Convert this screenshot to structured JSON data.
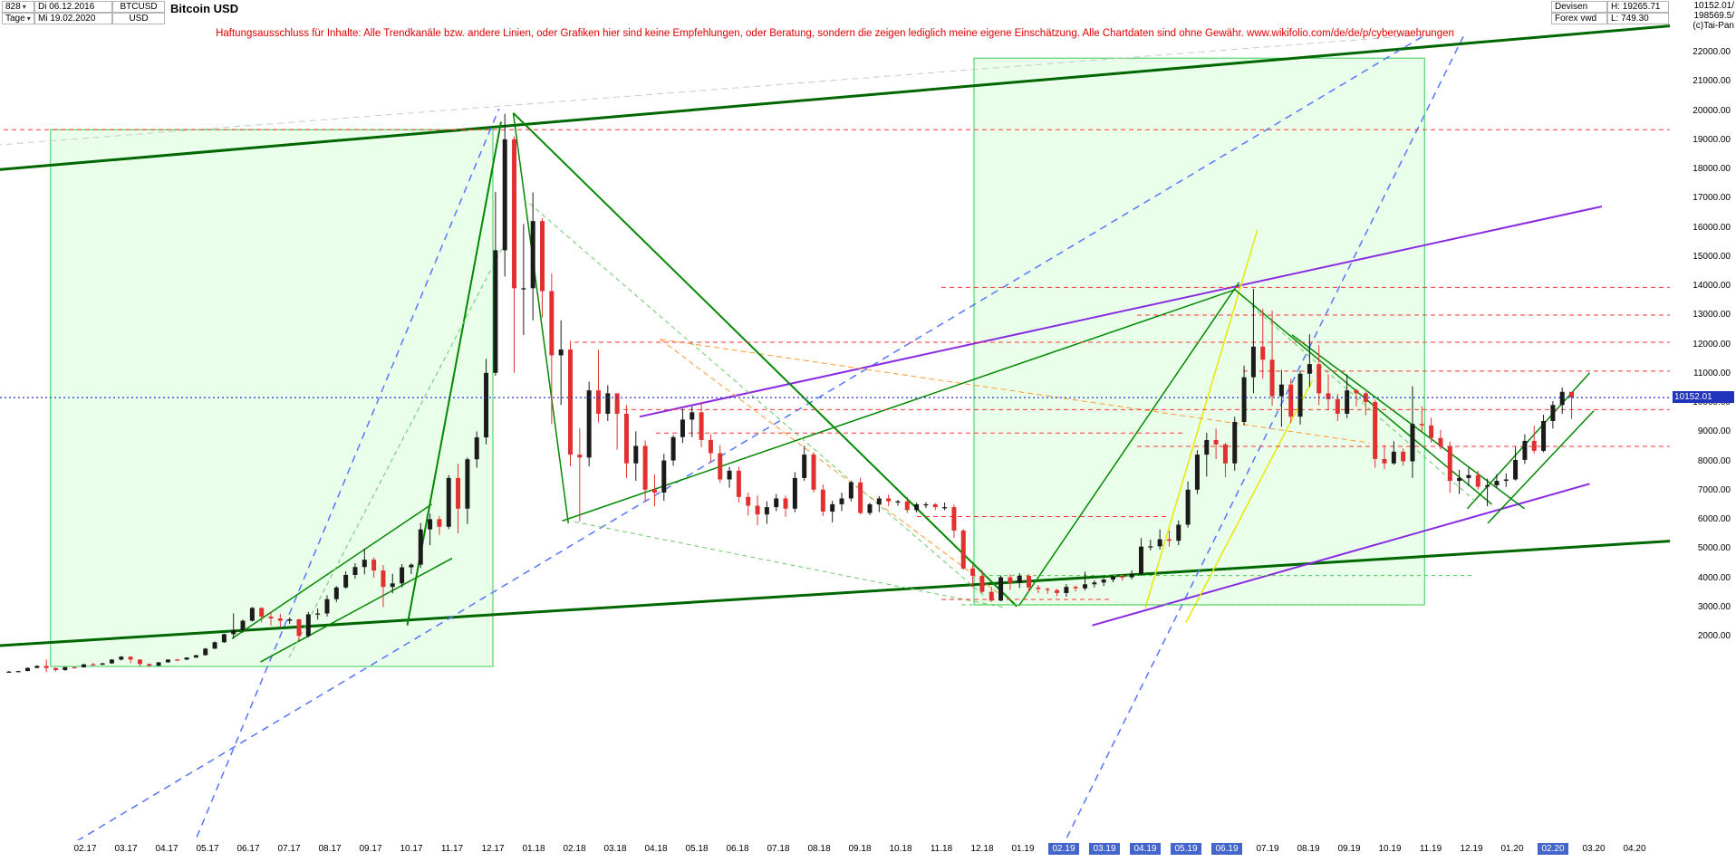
{
  "app": {
    "bars_count": "828",
    "period": "Tage",
    "start_date": "Di 06.12.2016",
    "end_date": "Mi 19.02.2020",
    "symbol": "BTCUSD",
    "currency": "USD",
    "title": "Bitcoin USD",
    "market": "Devisen",
    "feed": "Forex vwd",
    "high": "H: 19265.71",
    "low": "L: 749.30",
    "quote1": "10152.01/",
    "quote2": "198569.5/",
    "copyright": "(c)Tai-Pan"
  },
  "disclaimer": "Haftungsausschluss für Inhalte: Alle Trendkanäle bzw. andere Linien, oder Grafiken hier sind keine Empfehlungen, oder Beratung, sondern die zeigen lediglich meine eigene Einschätzung. Alle Chartdaten sind ohne Gewähr.  www.wikifolio.com/de/de/p/cyberwaehrungen",
  "price_marker": {
    "label": "10152.01",
    "value": 10152.01,
    "bg": "#2233bb"
  },
  "chart_data": {
    "type": "candlestick",
    "title": "Bitcoin USD",
    "symbol": "BTCUSD",
    "period": "Tage",
    "range_start": "06.12.2016",
    "range_end": "19.02.2020",
    "bars_on_screen": 828,
    "period_high": 19265.71,
    "period_low": 749.3,
    "last_price": 10152.01,
    "ylim": [
      2000,
      22000
    ],
    "y_step": 1000,
    "y_axis_labels": [
      "22000.00",
      "21000.00",
      "20000.00",
      "19000.00",
      "18000.00",
      "17000.00",
      "16000.00",
      "15000.00",
      "14000.00",
      "13000.00",
      "12000.00",
      "11000.00",
      "10000.00",
      "9000.00",
      "8000.00",
      "7000.00",
      "6000.00",
      "5000.00",
      "4000.00",
      "3000.00",
      "2000.00"
    ],
    "x_ticks": [
      {
        "t": "02.17",
        "m": 2,
        "hl": false
      },
      {
        "t": "03.17",
        "m": 3,
        "hl": false
      },
      {
        "t": "04.17",
        "m": 4,
        "hl": false
      },
      {
        "t": "05.17",
        "m": 5,
        "hl": false
      },
      {
        "t": "06.17",
        "m": 6,
        "hl": false
      },
      {
        "t": "07.17",
        "m": 7,
        "hl": false
      },
      {
        "t": "08.17",
        "m": 8,
        "hl": false
      },
      {
        "t": "09.17",
        "m": 9,
        "hl": false
      },
      {
        "t": "10.17",
        "m": 10,
        "hl": false
      },
      {
        "t": "11.17",
        "m": 11,
        "hl": false
      },
      {
        "t": "12.17",
        "m": 12,
        "hl": false
      },
      {
        "t": "01.18",
        "m": 13,
        "hl": false
      },
      {
        "t": "02.18",
        "m": 14,
        "hl": false
      },
      {
        "t": "03.18",
        "m": 15,
        "hl": false
      },
      {
        "t": "04.18",
        "m": 16,
        "hl": false
      },
      {
        "t": "05.18",
        "m": 17,
        "hl": false
      },
      {
        "t": "06.18",
        "m": 18,
        "hl": false
      },
      {
        "t": "07.18",
        "m": 19,
        "hl": false
      },
      {
        "t": "08.18",
        "m": 20,
        "hl": false
      },
      {
        "t": "09.18",
        "m": 21,
        "hl": false
      },
      {
        "t": "10.18",
        "m": 22,
        "hl": false
      },
      {
        "t": "11.18",
        "m": 23,
        "hl": false
      },
      {
        "t": "12.18",
        "m": 24,
        "hl": false
      },
      {
        "t": "01.19",
        "m": 25,
        "hl": false
      },
      {
        "t": "02.19",
        "m": 26,
        "hl": true
      },
      {
        "t": "03.19",
        "m": 27,
        "hl": true
      },
      {
        "t": "04.19",
        "m": 28,
        "hl": true
      },
      {
        "t": "05.19",
        "m": 29,
        "hl": true
      },
      {
        "t": "06.19",
        "m": 30,
        "hl": true
      },
      {
        "t": "07.19",
        "m": 31,
        "hl": false
      },
      {
        "t": "08.19",
        "m": 32,
        "hl": false
      },
      {
        "t": "09.19",
        "m": 33,
        "hl": false
      },
      {
        "t": "10.19",
        "m": 34,
        "hl": false
      },
      {
        "t": "11.19",
        "m": 35,
        "hl": false
      },
      {
        "t": "12.19",
        "m": 36,
        "hl": false
      },
      {
        "t": "01.20",
        "m": 37,
        "hl": false
      },
      {
        "t": "02.20",
        "m": 38,
        "hl": true
      },
      {
        "t": "03.20",
        "m": 39,
        "hl": false
      },
      {
        "t": "04.20",
        "m": 40,
        "hl": false
      }
    ],
    "sampling": "weekly OHLC approximation of the 828 daily bars shown",
    "first_open": 760,
    "m0": 0.13,
    "m_step": 0.2295,
    "up_color": "#1b1b1b",
    "down_color": "#e23030",
    "candles_hlc": [
      [
        790,
        740,
        768
      ],
      [
        795,
        760,
        788
      ],
      [
        910,
        780,
        895
      ],
      [
        985,
        880,
        963
      ],
      [
        1180,
        750,
        890
      ],
      [
        910,
        775,
        820
      ],
      [
        930,
        800,
        920
      ],
      [
        925,
        890,
        918
      ],
      [
        1030,
        900,
        1018
      ],
      [
        1070,
        980,
        1005
      ],
      [
        1070,
        990,
        1050
      ],
      [
        1200,
        1040,
        1180
      ],
      [
        1300,
        1150,
        1280
      ],
      [
        1290,
        1060,
        1180
      ],
      [
        1190,
        950,
        1030
      ],
      [
        1040,
        935,
        970
      ],
      [
        1100,
        960,
        1085
      ],
      [
        1190,
        1080,
        1180
      ],
      [
        1210,
        1150,
        1178
      ],
      [
        1260,
        1170,
        1250
      ],
      [
        1340,
        1240,
        1330
      ],
      [
        1580,
        1320,
        1555
      ],
      [
        1800,
        1540,
        1775
      ],
      [
        2070,
        1750,
        2050
      ],
      [
        2760,
        1900,
        2190
      ],
      [
        2550,
        2100,
        2510
      ],
      [
        2980,
        2480,
        2950
      ],
      [
        2970,
        2450,
        2650
      ],
      [
        2800,
        2350,
        2590
      ],
      [
        2750,
        2280,
        2510
      ],
      [
        2620,
        2400,
        2560
      ],
      [
        2580,
        1830,
        1990
      ],
      [
        2810,
        1940,
        2730
      ],
      [
        2930,
        2550,
        2760
      ],
      [
        3380,
        2650,
        3250
      ],
      [
        3700,
        3150,
        3650
      ],
      [
        4200,
        3600,
        4080
      ],
      [
        4480,
        3950,
        4350
      ],
      [
        4980,
        4100,
        4600
      ],
      [
        4680,
        3980,
        4230
      ],
      [
        4420,
        2980,
        3670
      ],
      [
        4120,
        3450,
        3790
      ],
      [
        4450,
        3660,
        4340
      ],
      [
        4480,
        4110,
        4430
      ],
      [
        5860,
        4320,
        5640
      ],
      [
        6180,
        5100,
        5990
      ],
      [
        6100,
        5450,
        5730
      ],
      [
        7500,
        5650,
        7400
      ],
      [
        7890,
        5500,
        6350
      ],
      [
        8100,
        5820,
        8040
      ],
      [
        8990,
        7750,
        8790
      ],
      [
        11480,
        8550,
        11000
      ],
      [
        17200,
        10900,
        15200
      ],
      [
        19870,
        14300,
        19000
      ],
      [
        19100,
        11000,
        13900
      ],
      [
        16100,
        12300,
        13900
      ],
      [
        17180,
        12800,
        16200
      ],
      [
        16300,
        12900,
        13800
      ],
      [
        14400,
        9250,
        11600
      ],
      [
        12800,
        9900,
        11800
      ],
      [
        12100,
        7800,
        8200
      ],
      [
        9100,
        5920,
        8100
      ],
      [
        10700,
        7800,
        10400
      ],
      [
        11790,
        9300,
        9600
      ],
      [
        10580,
        9350,
        10300
      ],
      [
        10290,
        8370,
        9600
      ],
      [
        9900,
        7390,
        7900
      ],
      [
        9000,
        7300,
        8500
      ],
      [
        8680,
        6600,
        7000
      ],
      [
        7530,
        6430,
        6900
      ],
      [
        8230,
        6620,
        8000
      ],
      [
        8870,
        7820,
        8800
      ],
      [
        9770,
        8600,
        9400
      ],
      [
        9850,
        8800,
        9650
      ],
      [
        9990,
        8450,
        8700
      ],
      [
        8900,
        7930,
        8250
      ],
      [
        8520,
        7240,
        7350
      ],
      [
        7780,
        7070,
        7650
      ],
      [
        7790,
        6560,
        6750
      ],
      [
        6900,
        6120,
        6450
      ],
      [
        6800,
        5780,
        6150
      ],
      [
        6600,
        5830,
        6400
      ],
      [
        6850,
        6260,
        6700
      ],
      [
        6800,
        6070,
        6350
      ],
      [
        7600,
        6230,
        7400
      ],
      [
        8500,
        7300,
        8200
      ],
      [
        8280,
        6900,
        7000
      ],
      [
        7170,
        6100,
        6250
      ],
      [
        6620,
        5880,
        6500
      ],
      [
        6900,
        6270,
        6700
      ],
      [
        7300,
        6600,
        7250
      ],
      [
        7410,
        6150,
        6200
      ],
      [
        6550,
        6130,
        6500
      ],
      [
        6780,
        6230,
        6700
      ],
      [
        6830,
        6430,
        6600
      ],
      [
        6650,
        6450,
        6600
      ],
      [
        6750,
        6200,
        6300
      ],
      [
        6550,
        6220,
        6500
      ],
      [
        6570,
        6370,
        6500
      ],
      [
        6540,
        6300,
        6400
      ],
      [
        6560,
        6290,
        6400
      ],
      [
        6490,
        5350,
        5600
      ],
      [
        5650,
        4250,
        4300
      ],
      [
        4420,
        3650,
        4050
      ],
      [
        4250,
        3450,
        3500
      ],
      [
        3680,
        3150,
        3200
      ],
      [
        4060,
        3180,
        4000
      ],
      [
        4100,
        3570,
        3800
      ],
      [
        4140,
        3630,
        4050
      ],
      [
        4110,
        3500,
        3650
      ],
      [
        3730,
        3460,
        3600
      ],
      [
        3650,
        3430,
        3560
      ],
      [
        3600,
        3350,
        3460
      ],
      [
        3770,
        3330,
        3670
      ],
      [
        3720,
        3510,
        3620
      ],
      [
        4190,
        3550,
        3760
      ],
      [
        3900,
        3650,
        3820
      ],
      [
        3970,
        3700,
        3920
      ],
      [
        4060,
        3830,
        4030
      ],
      [
        4090,
        3890,
        4000
      ],
      [
        4230,
        3930,
        4110
      ],
      [
        5340,
        4070,
        5050
      ],
      [
        5290,
        4920,
        5060
      ],
      [
        5640,
        4950,
        5300
      ],
      [
        5600,
        5050,
        5250
      ],
      [
        5950,
        5100,
        5800
      ],
      [
        7280,
        5700,
        7000
      ],
      [
        8350,
        6850,
        8200
      ],
      [
        8950,
        7450,
        8700
      ],
      [
        9090,
        8050,
        8550
      ],
      [
        8600,
        7430,
        7900
      ],
      [
        9500,
        7650,
        9320
      ],
      [
        11250,
        9200,
        10850
      ],
      [
        13880,
        10300,
        11900
      ],
      [
        13200,
        10800,
        11450
      ],
      [
        13130,
        9870,
        10200
      ],
      [
        11100,
        9150,
        10600
      ],
      [
        10800,
        9280,
        9500
      ],
      [
        11070,
        9230,
        10970
      ],
      [
        12320,
        10520,
        11300
      ],
      [
        11950,
        9900,
        10300
      ],
      [
        10950,
        9720,
        10100
      ],
      [
        10280,
        9350,
        9600
      ],
      [
        10950,
        9450,
        10400
      ],
      [
        10460,
        9850,
        10300
      ],
      [
        10360,
        9550,
        10000
      ],
      [
        10080,
        7750,
        8050
      ],
      [
        8530,
        7700,
        7900
      ],
      [
        8660,
        7850,
        8300
      ],
      [
        8410,
        7830,
        7970
      ],
      [
        10540,
        7400,
        9250
      ],
      [
        9850,
        8970,
        9200
      ],
      [
        9460,
        8610,
        8770
      ],
      [
        9050,
        8380,
        8500
      ],
      [
        8650,
        6890,
        7300
      ],
      [
        7680,
        6850,
        7400
      ],
      [
        7770,
        7120,
        7500
      ],
      [
        7650,
        7000,
        7100
      ],
      [
        7380,
        6430,
        7150
      ],
      [
        7530,
        7050,
        7300
      ],
      [
        7560,
        7090,
        7350
      ],
      [
        8460,
        7310,
        8020
      ],
      [
        8900,
        7880,
        8670
      ],
      [
        9190,
        8240,
        8330
      ],
      [
        9570,
        8280,
        9350
      ],
      [
        10030,
        9090,
        9900
      ],
      [
        10500,
        9600,
        10350
      ],
      [
        10280,
        9420,
        10152
      ]
    ]
  },
  "overlays": {
    "box_fill": "rgba(200,255,200,0.40)",
    "box_stroke": "#33cc55",
    "boxes": [
      [
        1.15,
        945,
        12.0,
        19330
      ],
      [
        23.8,
        3055,
        34.85,
        21780
      ]
    ],
    "lines": [
      [
        -0.2,
        17950,
        41,
        22900,
        "#006600",
        3,
        ""
      ],
      [
        -0.2,
        1650,
        41,
        5250,
        "#006600",
        3,
        ""
      ],
      [
        -0.2,
        18800,
        35,
        22600,
        "#c9c9c9",
        1,
        "7,5"
      ],
      [
        1.0,
        -5700,
        34.8,
        22520,
        "#5577ff",
        1.5,
        "8,6"
      ],
      [
        4.5,
        -5700,
        12.15,
        20050,
        "#5577ff",
        1.5,
        "8,6"
      ],
      [
        25.8,
        -5700,
        35.8,
        22520,
        "#5577ff",
        1.5,
        "8,6"
      ],
      [
        15.6,
        9500,
        39.2,
        16700,
        "#8a2be2",
        2,
        ""
      ],
      [
        26.7,
        2350,
        38.9,
        7200,
        "#8a2be2",
        2,
        ""
      ],
      [
        28.0,
        2950,
        30.75,
        15900,
        "#e8e800",
        1.5,
        ""
      ],
      [
        29.0,
        2450,
        32.1,
        10750,
        "#e8e800",
        1.5,
        ""
      ],
      [
        16.1,
        12150,
        24.4,
        3450,
        "#ff9933",
        1,
        "6,4"
      ],
      [
        16.1,
        12150,
        33.5,
        8600,
        "#ff9933",
        1,
        "6,4"
      ],
      [
        9.9,
        2350,
        12.2,
        19600,
        "#008800",
        2,
        ""
      ],
      [
        5.6,
        1900,
        10.5,
        6500,
        "#008800",
        1.5,
        ""
      ],
      [
        6.3,
        1100,
        11.0,
        4650,
        "#008800",
        1.5,
        ""
      ],
      [
        12.5,
        19900,
        24.85,
        3000,
        "#008800",
        2,
        ""
      ],
      [
        12.5,
        19900,
        13.85,
        5850,
        "#008800",
        1.5,
        ""
      ],
      [
        13.7,
        5930,
        30.2,
        13850,
        "#008800",
        1.5,
        ""
      ],
      [
        30.2,
        13850,
        36.5,
        6500,
        "#008800",
        1.5,
        ""
      ],
      [
        31.6,
        12300,
        37.3,
        6350,
        "#008800",
        1.5,
        ""
      ],
      [
        24.9,
        3020,
        30.3,
        14100,
        "#008800",
        1.5,
        ""
      ],
      [
        35.9,
        6350,
        38.9,
        11000,
        "#008800",
        1.5,
        ""
      ],
      [
        36.4,
        5850,
        39.0,
        9700,
        "#008800",
        1.5,
        ""
      ],
      [
        7.0,
        1250,
        12.35,
        15600,
        "#66cc66",
        1,
        "5,4"
      ],
      [
        12.9,
        16800,
        24.1,
        3300,
        "#66cc66",
        1,
        "5,4"
      ],
      [
        14.0,
        5900,
        24.6,
        2950,
        "#66cc66",
        1,
        "5,4"
      ],
      [
        30.6,
        13300,
        36.1,
        6600,
        "#66cc66",
        1,
        "5,4"
      ]
    ],
    "hlines": [
      [
        19330,
        -0.2,
        41,
        "#ff3333",
        "5,4"
      ],
      [
        13930,
        23.0,
        41,
        "#ff3333",
        "5,4"
      ],
      [
        12980,
        27.8,
        41,
        "#ff3333",
        "5,4"
      ],
      [
        12050,
        14.0,
        41,
        "#ff3333",
        "5,4"
      ],
      [
        11060,
        30.4,
        41,
        "#ff3333",
        "5,4"
      ],
      [
        9740,
        15.0,
        41,
        "#ff3333",
        "5,4"
      ],
      [
        8940,
        16.0,
        29.0,
        "#ff3333",
        "5,4"
      ],
      [
        8480,
        27.8,
        41,
        "#ff3333",
        "5,4"
      ],
      [
        6080,
        22.4,
        28.6,
        "#ff3333",
        "5,4"
      ],
      [
        3240,
        23.0,
        27.2,
        "#ff3333",
        "5,4"
      ],
      [
        3060,
        23.5,
        34.5,
        "#44cc44",
        "4,4"
      ],
      [
        4060,
        24.0,
        36.0,
        "#44cc44",
        "4,4"
      ]
    ],
    "current_price_line": {
      "price": 10152.01,
      "color": "#2233cc",
      "dash": "2,3"
    }
  }
}
